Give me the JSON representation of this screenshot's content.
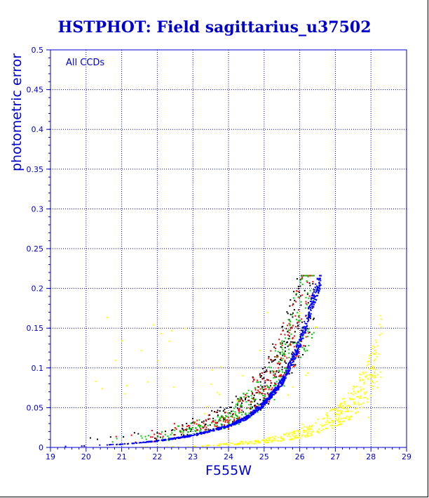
{
  "chart_data": {
    "type": "scatter",
    "title": "HSTPHOT: Field sagittarius_u37502",
    "xlabel": "F555W",
    "ylabel": "photometric error",
    "annotation": "All CCDs",
    "xlim": [
      19,
      29
    ],
    "ylim": [
      0,
      0.5
    ],
    "xticks": [
      "19",
      "20",
      "21",
      "22",
      "23",
      "24",
      "25",
      "26",
      "27",
      "28",
      "29"
    ],
    "yticks": [
      "0",
      "0.05",
      "0.1",
      "0.15",
      "0.2",
      "0.25",
      "0.3",
      "0.35",
      "0.4",
      "0.45",
      "0.5"
    ],
    "grid": true,
    "series": [
      {
        "color": "#0000ff",
        "trend": [
          [
            19.2,
            0.001
          ],
          [
            20,
            0.002
          ],
          [
            21,
            0.004
          ],
          [
            22,
            0.008
          ],
          [
            23,
            0.015
          ],
          [
            24,
            0.027
          ],
          [
            24.5,
            0.037
          ],
          [
            25,
            0.055
          ],
          [
            25.5,
            0.082
          ],
          [
            26,
            0.13
          ],
          [
            26.3,
            0.175
          ],
          [
            26.6,
            0.215
          ]
        ]
      },
      {
        "color": "#000000",
        "trend": [
          [
            20,
            0.002
          ],
          [
            21,
            0.005
          ],
          [
            22,
            0.01
          ],
          [
            23,
            0.02
          ],
          [
            24,
            0.035
          ],
          [
            24.5,
            0.05
          ],
          [
            25,
            0.075
          ],
          [
            25.5,
            0.11
          ],
          [
            26,
            0.16
          ],
          [
            26.4,
            0.215
          ]
        ]
      },
      {
        "color": "#ff0000",
        "trend": [
          [
            20,
            0.002
          ],
          [
            21,
            0.005
          ],
          [
            22,
            0.01
          ],
          [
            23,
            0.02
          ],
          [
            24,
            0.033
          ],
          [
            25,
            0.07
          ],
          [
            25.5,
            0.105
          ],
          [
            26,
            0.155
          ],
          [
            26.4,
            0.21
          ]
        ]
      },
      {
        "color": "#00cc00",
        "trend": [
          [
            20,
            0.002
          ],
          [
            21,
            0.005
          ],
          [
            22,
            0.009
          ],
          [
            23,
            0.018
          ],
          [
            24,
            0.031
          ],
          [
            25,
            0.065
          ],
          [
            25.5,
            0.1
          ],
          [
            26,
            0.15
          ],
          [
            26.4,
            0.205
          ]
        ]
      },
      {
        "color": "#ffff00",
        "trend": [
          [
            21,
            0.0
          ],
          [
            23,
            0.001
          ],
          [
            24,
            0.004
          ],
          [
            25,
            0.008
          ],
          [
            25.5,
            0.012
          ],
          [
            26,
            0.017
          ],
          [
            26.5,
            0.026
          ],
          [
            27,
            0.038
          ],
          [
            27.5,
            0.057
          ],
          [
            28,
            0.09
          ],
          [
            28.3,
            0.13
          ]
        ]
      }
    ]
  }
}
